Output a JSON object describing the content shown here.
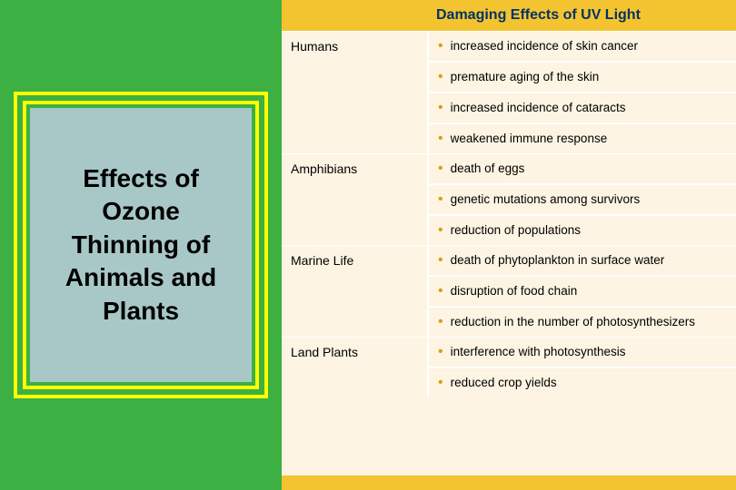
{
  "leftPanel": {
    "bgColor": "#3cb043",
    "borderColor": "#ffff00",
    "innerBg": "#a8c8c8",
    "titleLines": [
      "Effects of",
      "Ozone",
      "Thinning of",
      "Animals and",
      "Plants"
    ],
    "titleFontFamily": "Comic Sans MS",
    "titleFontSize": 28,
    "titleColor": "#000000"
  },
  "rightPanel": {
    "bgColor": "#fdf4e3",
    "headerBg": "#f4c430",
    "headerTextColor": "#003366",
    "bulletColor": "#d4a017",
    "borderColor": "#ffffff",
    "title": "Damaging Effects of UV Light",
    "titleFontSize": 16,
    "labelFontSize": 14,
    "effectFontSize": 13.5,
    "categories": [
      {
        "label": "Humans",
        "effects": [
          "increased incidence of skin cancer",
          "premature aging of the skin",
          "increased incidence of cataracts",
          "weakened immune response"
        ]
      },
      {
        "label": "Amphibians",
        "effects": [
          "death of eggs",
          "genetic mutations among survivors",
          "reduction of populations"
        ]
      },
      {
        "label": "Marine Life",
        "effects": [
          "death of phytoplankton in surface water",
          "disruption of food chain",
          "reduction in the number of photosynthesizers"
        ]
      },
      {
        "label": "Land Plants",
        "effects": [
          "interference with photosynthesis",
          "reduced crop yields"
        ]
      }
    ]
  }
}
